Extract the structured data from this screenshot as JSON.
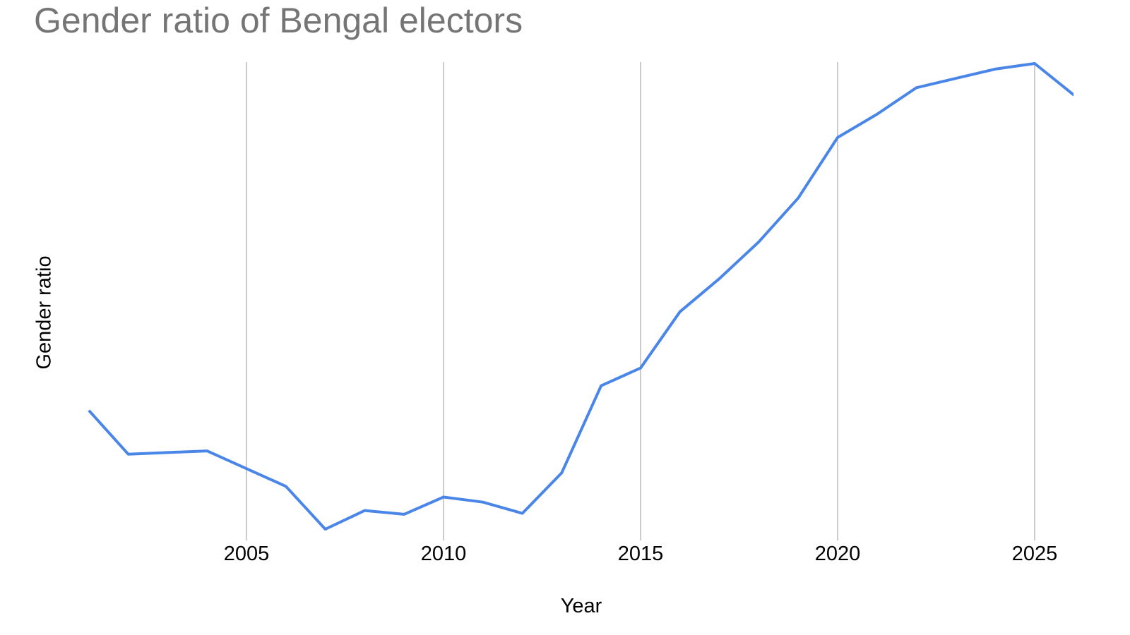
{
  "chart_data": {
    "type": "line",
    "title": "Gender ratio of Bengal electors",
    "xlabel": "Year",
    "ylabel": "Gender ratio",
    "x_ticks": [
      2005,
      2010,
      2015,
      2020,
      2025
    ],
    "xlim": [
      2000,
      2026
    ],
    "y_ticks": [],
    "y_units_note": "No y-axis tick labels shown; values are relative (0 = lowest point, 100 = highest point) read from pixel positions",
    "grid": {
      "vertical": true,
      "horizontal": false
    },
    "legend": null,
    "series": [
      {
        "name": "Gender ratio",
        "color": "#4a86e8",
        "x": [
          2001,
          2002,
          2004,
          2006,
          2007,
          2008,
          2009,
          2010,
          2011,
          2012,
          2013,
          2014,
          2015,
          2016,
          2017,
          2018,
          2019,
          2020,
          2021,
          2022,
          2023,
          2024,
          2025,
          2026
        ],
        "values": [
          25.5,
          16.1,
          16.8,
          9.2,
          0.0,
          4.0,
          3.2,
          6.9,
          5.8,
          3.4,
          12.1,
          30.8,
          34.6,
          46.7,
          53.8,
          61.7,
          71.1,
          84.1,
          89.1,
          94.8,
          96.8,
          98.8,
          100.0,
          93.2
        ]
      }
    ]
  }
}
